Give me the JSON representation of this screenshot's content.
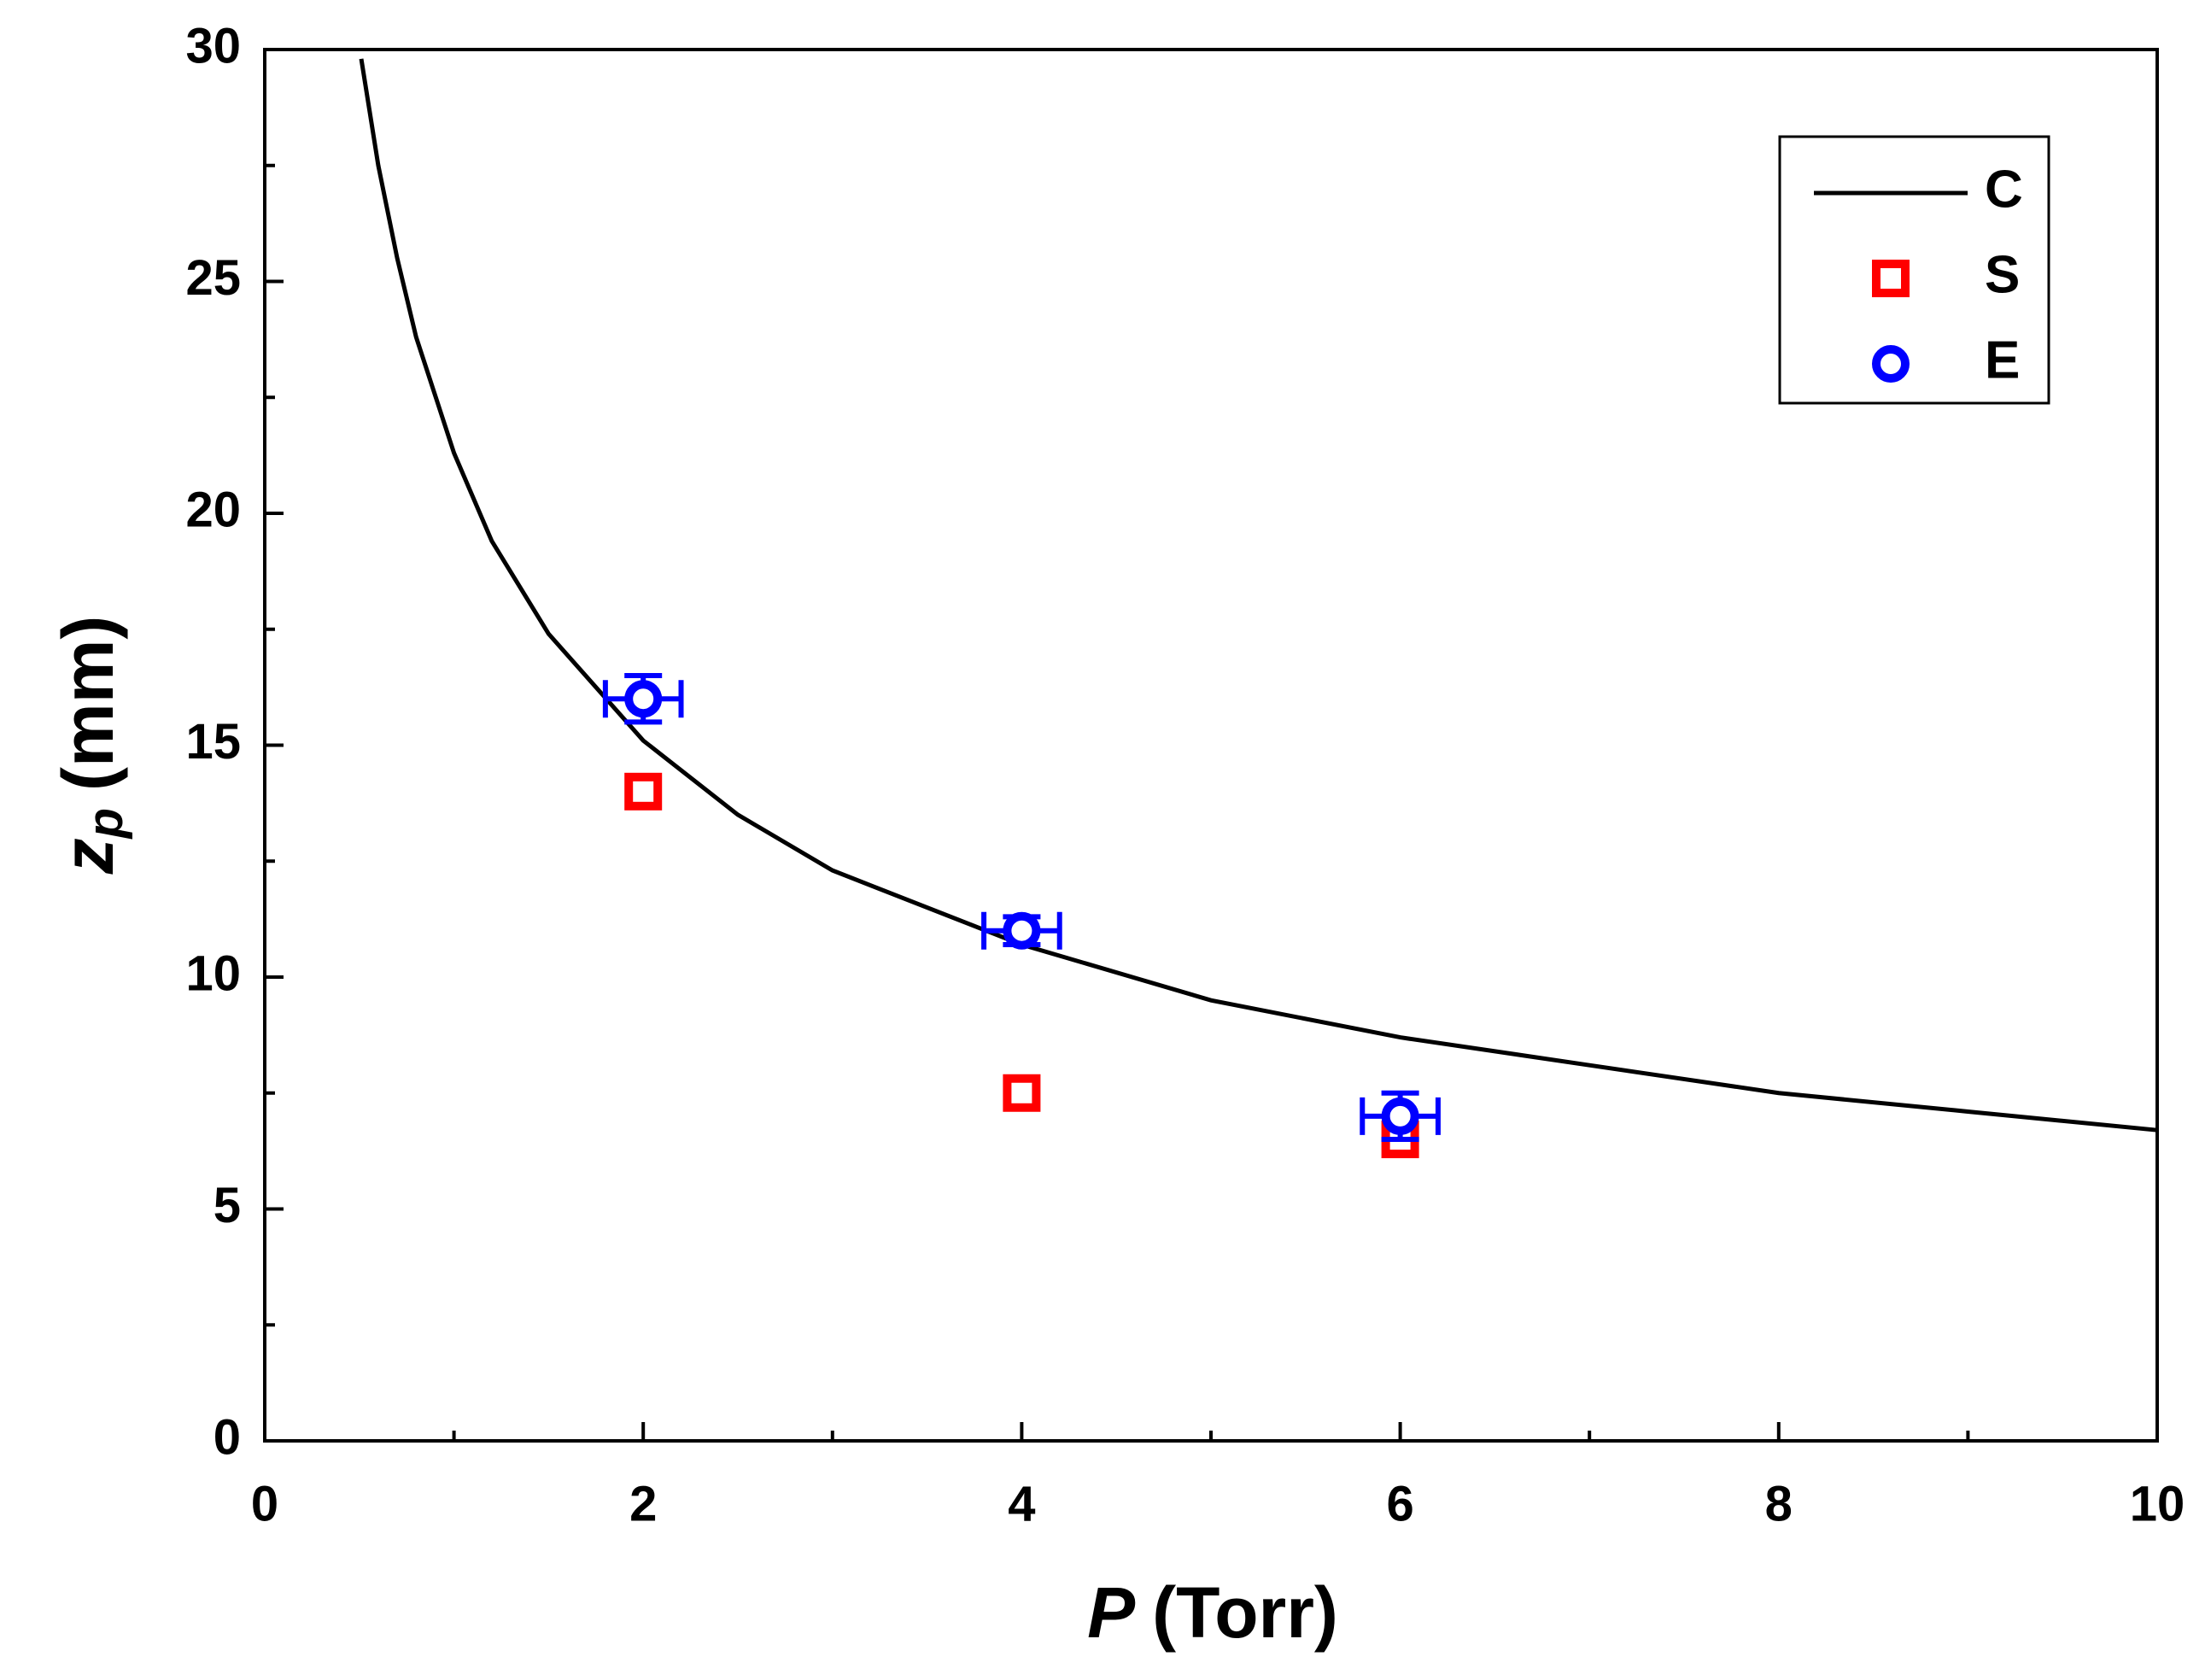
{
  "chart_data": {
    "type": "scatter",
    "x_label": {
      "symbol": "P",
      "unit": "(Torr)"
    },
    "y_label": {
      "symbol": "z",
      "subscript": "p",
      "unit": "(mm)"
    },
    "xlim": [
      0,
      10
    ],
    "ylim": [
      0,
      30
    ],
    "xticks": [
      0,
      2,
      4,
      6,
      8,
      10
    ],
    "yticks": [
      0,
      5,
      10,
      15,
      20,
      25,
      30
    ],
    "xticks_minor": [
      1,
      3,
      5,
      7,
      9
    ],
    "yticks_minor": [
      2.5,
      7.5,
      12.5,
      17.5,
      22.5,
      27.5
    ],
    "legend": "upper right",
    "series": [
      {
        "name": "C",
        "kind": "line",
        "color": "#000000",
        "x": [
          0.51,
          0.6,
          0.7,
          0.8,
          1,
          1.2,
          1.5,
          2,
          2.5,
          3,
          4,
          5,
          6,
          7,
          8,
          9,
          10
        ],
        "values": [
          29.8,
          27.5,
          25.5,
          23.8,
          21.3,
          19.4,
          17.4,
          15.1,
          13.5,
          12.3,
          10.7,
          9.5,
          8.7,
          8.1,
          7.5,
          7.1,
          6.7
        ]
      },
      {
        "name": "S",
        "kind": "marker",
        "marker": "square",
        "color": "#ff0000",
        "x": [
          2,
          4,
          6
        ],
        "values": [
          14,
          7.5,
          6.5
        ]
      },
      {
        "name": "E",
        "kind": "marker",
        "marker": "circle",
        "color": "#0000ff",
        "x": [
          2,
          4,
          6
        ],
        "values": [
          16,
          11,
          7
        ],
        "xerr": [
          0.2,
          0.2,
          0.2
        ],
        "yerr": [
          0.5,
          0.3,
          0.5
        ]
      }
    ]
  }
}
